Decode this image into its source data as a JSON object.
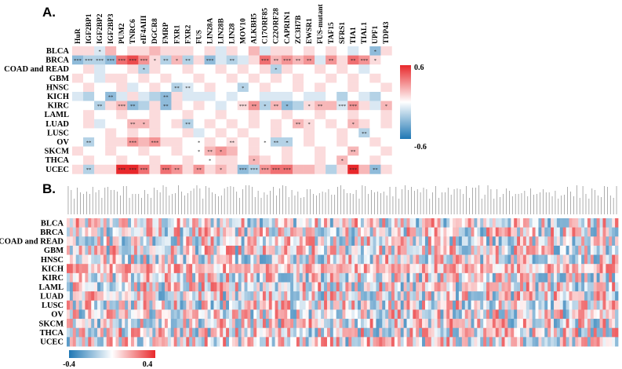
{
  "panel_a_label": "A.",
  "panel_b_label": "B.",
  "chart_data": [
    {
      "type": "heatmap",
      "panel": "A.",
      "rows": [
        "BLCA",
        "BRCA",
        "COAD and READ",
        "GBM",
        "HNSC",
        "KICH",
        "KIRC",
        "LAML",
        "LUAD",
        "LUSC",
        "OV",
        "SKCM",
        "THCA",
        "UCEC"
      ],
      "columns": [
        "HuR",
        "IGF2BP1",
        "IGF2BP2",
        "IGF2BP3",
        "PUM2",
        "TNRC6",
        "eIF4AIII",
        "DGCR8",
        "FMRP",
        "FXR1",
        "FXR2",
        "FUS",
        "LIN28A",
        "LIN28B",
        "LIN28",
        "MOV10",
        "ALKBH5",
        "C17ORF85",
        "C22ORF28",
        "CAPRIN1",
        "ZC3H7B",
        "EWSR1",
        "FUS-mutant",
        "TAF15",
        "SFRS1",
        "TIA1",
        "TIAL1",
        "UPF1",
        "TDP43"
      ],
      "values": [
        [
          0.1,
          0.1,
          -0.1,
          0.2,
          0.0,
          0.1,
          0.1,
          0.2,
          0.1,
          0.1,
          0.1,
          0.0,
          0.1,
          -0.1,
          0.1,
          0.0,
          0.2,
          -0.1,
          0.1,
          0.1,
          0.0,
          0.1,
          0.0,
          0.1,
          0.0,
          -0.1,
          0.0,
          -0.3,
          0.1
        ],
        [
          -0.3,
          -0.2,
          -0.2,
          -0.3,
          0.4,
          0.5,
          0.3,
          0.1,
          -0.2,
          0.2,
          -0.2,
          0.1,
          -0.3,
          -0.1,
          -0.2,
          -0.1,
          0.1,
          0.4,
          0.2,
          0.3,
          0.2,
          0.3,
          -0.1,
          0.3,
          0.1,
          0.4,
          0.3,
          0.1,
          0.0
        ],
        [
          0.0,
          0.1,
          -0.1,
          0.0,
          0.0,
          0.1,
          -0.2,
          0.1,
          0.0,
          0.0,
          0.1,
          0.0,
          0.0,
          0.1,
          0.0,
          0.1,
          0.0,
          0.1,
          -0.2,
          0.1,
          0.0,
          0.0,
          0.1,
          0.0,
          0.1,
          0.0,
          -0.1,
          0.0,
          0.0
        ],
        [
          0.1,
          0.0,
          -0.1,
          0.1,
          0.1,
          0.0,
          0.1,
          0.0,
          0.1,
          0.0,
          0.0,
          0.1,
          0.0,
          0.0,
          0.1,
          0.0,
          0.1,
          0.0,
          0.1,
          0.0,
          0.1,
          0.0,
          0.0,
          0.1,
          0.0,
          0.1,
          0.0,
          0.1,
          0.0
        ],
        [
          0.0,
          0.1,
          0.0,
          0.0,
          0.1,
          -0.1,
          0.0,
          0.1,
          0.0,
          -0.2,
          -0.1,
          0.0,
          0.1,
          0.0,
          0.0,
          -0.2,
          0.0,
          0.1,
          0.0,
          0.0,
          0.1,
          0.0,
          0.1,
          0.0,
          0.0,
          0.1,
          0.0,
          0.0,
          0.1
        ],
        [
          -0.1,
          -0.2,
          0.0,
          -0.3,
          -0.1,
          0.1,
          -0.1,
          -0.2,
          -0.3,
          0.1,
          -0.1,
          -0.1,
          -0.1,
          0.0,
          -0.1,
          0.0,
          0.0,
          -0.1,
          -0.1,
          -0.1,
          0.0,
          -0.1,
          -0.1,
          0.0,
          -0.2,
          0.0,
          -0.1,
          -0.2,
          0.0
        ],
        [
          0.0,
          0.0,
          -0.2,
          0.1,
          0.2,
          -0.3,
          -0.2,
          0.1,
          -0.3,
          0.1,
          0.0,
          0.1,
          0.0,
          -0.1,
          0.0,
          0.1,
          0.3,
          -0.2,
          0.2,
          -0.3,
          -0.2,
          0.1,
          0.2,
          0.2,
          -0.1,
          0.3,
          0.1,
          -0.1,
          0.2
        ],
        [
          0.0,
          0.1,
          0.0,
          0.0,
          0.1,
          0.0,
          0.0,
          0.1,
          0.0,
          0.0,
          0.1,
          0.0,
          0.0,
          0.1,
          0.0,
          0.0,
          0.1,
          0.0,
          0.0,
          0.1,
          0.0,
          0.0,
          0.1,
          0.0,
          0.0,
          0.1,
          0.0,
          0.0,
          0.1
        ],
        [
          0.0,
          0.1,
          -0.1,
          0.0,
          0.0,
          0.2,
          0.2,
          0.1,
          0.0,
          0.1,
          -0.2,
          0.0,
          0.1,
          0.0,
          0.1,
          0.0,
          0.1,
          0.0,
          0.1,
          0.0,
          0.2,
          0.1,
          0.0,
          0.1,
          0.0,
          0.2,
          0.1,
          0.0,
          0.1
        ],
        [
          0.0,
          0.0,
          0.0,
          0.1,
          0.0,
          0.1,
          0.0,
          0.1,
          0.0,
          0.0,
          0.1,
          -0.1,
          0.0,
          0.1,
          0.0,
          0.1,
          0.0,
          0.0,
          0.1,
          0.0,
          0.0,
          0.1,
          0.0,
          0.0,
          0.1,
          0.0,
          -0.2,
          0.0,
          0.0
        ],
        [
          0.0,
          -0.2,
          0.0,
          0.1,
          0.1,
          0.3,
          0.2,
          0.3,
          0.1,
          0.1,
          0.0,
          0.0,
          0.1,
          0.0,
          0.1,
          0.0,
          0.1,
          0.0,
          -0.2,
          -0.2,
          0.0,
          0.1,
          0.0,
          0.0,
          0.1,
          0.0,
          0.0,
          0.1,
          0.0
        ],
        [
          0.1,
          0.0,
          0.0,
          0.1,
          0.0,
          0.0,
          0.1,
          0.0,
          0.0,
          0.1,
          0.0,
          0.0,
          0.2,
          0.3,
          0.2,
          0.0,
          0.1,
          0.0,
          0.0,
          0.1,
          0.0,
          0.0,
          0.1,
          0.0,
          0.0,
          0.2,
          0.0,
          0.0,
          0.1
        ],
        [
          0.0,
          0.1,
          0.0,
          0.0,
          0.1,
          0.0,
          0.0,
          0.1,
          0.0,
          0.0,
          0.1,
          0.0,
          0.0,
          0.1,
          0.1,
          0.0,
          0.2,
          0.1,
          0.0,
          0.1,
          0.0,
          0.0,
          0.1,
          0.0,
          0.2,
          0.0,
          0.0,
          0.1,
          0.0
        ],
        [
          0.1,
          -0.2,
          0.1,
          0.1,
          0.6,
          0.6,
          0.4,
          0.1,
          0.4,
          0.3,
          0.1,
          0.3,
          0.1,
          0.2,
          0.1,
          -0.3,
          -0.2,
          0.3,
          0.4,
          0.4,
          0.2,
          0.2,
          0.1,
          -0.2,
          0.1,
          0.6,
          0.2,
          -0.3,
          0.1
        ]
      ],
      "significance": [
        [
          0,
          0,
          1,
          0,
          0,
          0,
          0,
          0,
          0,
          0,
          0,
          0,
          0,
          0,
          0,
          0,
          0,
          0,
          0,
          0,
          0,
          0,
          0,
          0,
          0,
          0,
          0,
          1,
          0
        ],
        [
          3,
          3,
          3,
          3,
          3,
          3,
          3,
          1,
          2,
          1,
          2,
          0,
          3,
          0,
          2,
          0,
          0,
          3,
          2,
          3,
          2,
          2,
          0,
          2,
          0,
          2,
          3,
          1,
          0
        ],
        [
          0,
          0,
          0,
          0,
          0,
          0,
          1,
          0,
          0,
          0,
          0,
          0,
          0,
          0,
          0,
          0,
          0,
          0,
          1,
          0,
          0,
          0,
          0,
          0,
          0,
          0,
          0,
          0,
          0
        ],
        [
          0,
          0,
          0,
          0,
          0,
          0,
          0,
          0,
          0,
          0,
          0,
          0,
          0,
          0,
          0,
          0,
          0,
          0,
          0,
          0,
          0,
          0,
          0,
          0,
          0,
          0,
          0,
          0,
          0
        ],
        [
          0,
          0,
          0,
          0,
          0,
          0,
          0,
          0,
          0,
          2,
          2,
          0,
          0,
          0,
          0,
          1,
          0,
          0,
          0,
          0,
          0,
          0,
          0,
          0,
          0,
          0,
          0,
          0,
          0
        ],
        [
          0,
          0,
          0,
          2,
          0,
          0,
          0,
          0,
          2,
          0,
          0,
          0,
          0,
          0,
          0,
          0,
          0,
          0,
          0,
          0,
          0,
          0,
          0,
          0,
          0,
          0,
          0,
          0,
          0
        ],
        [
          0,
          0,
          2,
          0,
          3,
          2,
          0,
          0,
          2,
          0,
          0,
          0,
          0,
          0,
          0,
          3,
          2,
          1,
          2,
          1,
          0,
          1,
          2,
          0,
          3,
          3,
          0,
          0,
          1
        ],
        [
          0,
          0,
          0,
          0,
          0,
          0,
          0,
          0,
          0,
          0,
          0,
          0,
          0,
          0,
          0,
          0,
          0,
          0,
          0,
          0,
          0,
          0,
          0,
          0,
          0,
          0,
          0,
          0,
          0
        ],
        [
          0,
          0,
          0,
          0,
          0,
          2,
          1,
          0,
          0,
          0,
          2,
          0,
          0,
          0,
          0,
          0,
          0,
          0,
          0,
          0,
          2,
          1,
          0,
          0,
          0,
          1,
          0,
          0,
          0
        ],
        [
          0,
          0,
          0,
          0,
          0,
          0,
          0,
          0,
          0,
          0,
          0,
          0,
          0,
          0,
          0,
          0,
          0,
          0,
          0,
          0,
          0,
          0,
          0,
          0,
          0,
          0,
          2,
          0,
          0
        ],
        [
          0,
          2,
          0,
          0,
          0,
          3,
          0,
          3,
          0,
          0,
          0,
          1,
          0,
          0,
          2,
          0,
          0,
          1,
          2,
          1,
          0,
          0,
          0,
          0,
          0,
          0,
          0,
          0,
          0
        ],
        [
          0,
          0,
          0,
          0,
          0,
          0,
          0,
          0,
          0,
          0,
          0,
          1,
          2,
          1,
          0,
          0,
          0,
          0,
          0,
          0,
          0,
          0,
          0,
          0,
          0,
          2,
          0,
          0,
          0
        ],
        [
          0,
          0,
          0,
          0,
          0,
          0,
          0,
          0,
          0,
          0,
          0,
          0,
          1,
          0,
          0,
          0,
          1,
          0,
          0,
          0,
          0,
          0,
          0,
          0,
          1,
          0,
          0,
          0,
          0
        ],
        [
          0,
          2,
          0,
          0,
          3,
          3,
          3,
          0,
          3,
          2,
          0,
          2,
          0,
          1,
          0,
          3,
          3,
          3,
          3,
          3,
          0,
          0,
          0,
          0,
          0,
          3,
          0,
          2,
          0
        ]
      ],
      "colorbar": {
        "max_label": "0.6",
        "min_label": "-0.6",
        "range": [
          -0.6,
          0.6
        ],
        "low_color": "#1f77b4",
        "mid_color": "#ffffff",
        "high_color": "#e8282b"
      }
    },
    {
      "type": "heatmap",
      "panel": "B.",
      "rows": [
        "BLCA",
        "BRCA",
        "COAD and READ",
        "GBM",
        "HNSC",
        "KICH",
        "KIRC",
        "LAML",
        "LUAD",
        "LUSC",
        "OV",
        "SKCM",
        "THCA",
        "UCEC"
      ],
      "column_count": 180,
      "colorbar": {
        "min_label": "-0.4",
        "max_label": "0.4",
        "range": [
          -0.4,
          0.4
        ],
        "low_color": "#1f77b4",
        "mid_color": "#ffffff",
        "high_color": "#e8282b"
      }
    }
  ]
}
